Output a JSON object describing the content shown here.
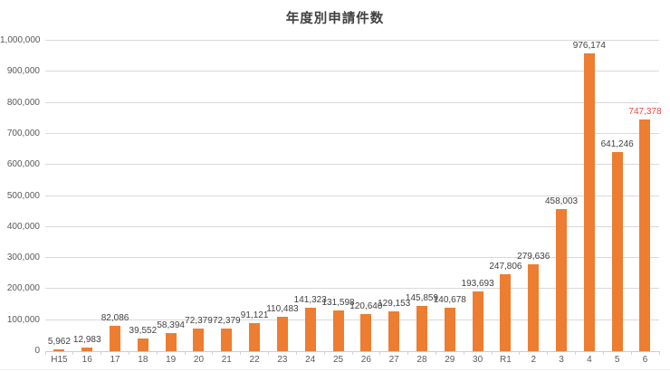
{
  "title": "年度別申請件数",
  "chart_data": {
    "type": "bar",
    "title": "年度別申請件数",
    "xlabel": "",
    "ylabel": "",
    "categories": [
      "H15",
      "16",
      "17",
      "18",
      "19",
      "20",
      "21",
      "22",
      "23",
      "24",
      "25",
      "26",
      "27",
      "28",
      "29",
      "30",
      "R1",
      "2",
      "3",
      "4",
      "5",
      "6"
    ],
    "values": [
      5962,
      12983,
      82086,
      39552,
      58394,
      72379,
      72379,
      91121,
      110483,
      141323,
      131598,
      120640,
      129153,
      145859,
      140678,
      193693,
      247806,
      279636,
      458003,
      976174,
      641246,
      747378
    ],
    "data_labels": [
      "5,962",
      "12,983",
      "82,086",
      "39,552",
      "58,394",
      "72,379",
      "72,379",
      "91,121",
      "110,483",
      "141,323",
      "131,598",
      "120,640",
      "129,153",
      "145,859",
      "140,678",
      "193,693",
      "247,806",
      "279,636",
      "458,003",
      "976,174",
      "641,246",
      "747,378"
    ],
    "ylim": [
      0,
      1000000
    ],
    "ytick_step": 100000,
    "ytick_labels": [
      "0",
      "100,000",
      "200,000",
      "300,000",
      "400,000",
      "500,000",
      "600,000",
      "700,000",
      "800,000",
      "900,000",
      "1,000,000"
    ],
    "grid": true,
    "legend": false,
    "bar_color": "#ED7D31",
    "data_label_color": "#404040",
    "axis_label_color": "#595959",
    "gridline_color": "#DADADA",
    "highlighted_index": 21,
    "highlight_label_color": "#F2443C"
  }
}
